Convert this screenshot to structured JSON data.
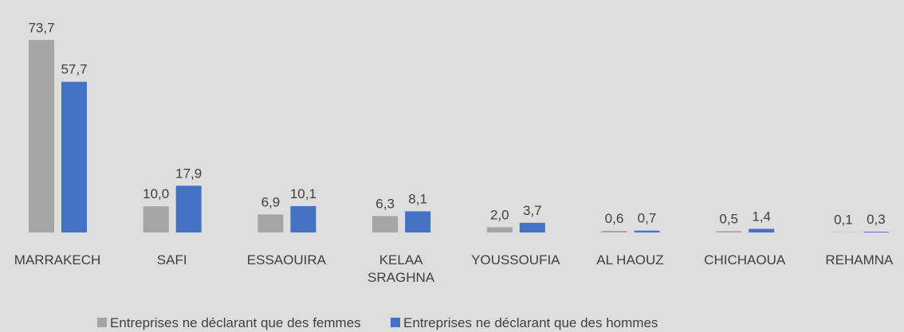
{
  "chart_data": {
    "type": "bar",
    "categories": [
      "MARRAKECH",
      "SAFI",
      "ESSAOUIRA",
      "KELAA SRAGHNA",
      "YOUSSOUFIA",
      "AL HAOUZ",
      "CHICHAOUA",
      "REHAMNA"
    ],
    "series": [
      {
        "name": "Entreprises ne déclarant que des femmes",
        "color": "#a5a5a5",
        "values": [
          73.7,
          10.0,
          6.9,
          6.3,
          2.0,
          0.6,
          0.5,
          0.1
        ],
        "value_labels": [
          "73,7",
          "10,0",
          "6,9",
          "6,3",
          "2,0",
          "0,6",
          "0,5",
          "0,1"
        ]
      },
      {
        "name": "Entreprises ne déclarant que des hommes",
        "color": "#4472c4",
        "values": [
          57.7,
          17.9,
          10.1,
          8.1,
          3.7,
          0.7,
          1.4,
          0.3
        ],
        "value_labels": [
          "57,7",
          "17,9",
          "10,1",
          "8,1",
          "3,7",
          "0,7",
          "1,4",
          "0,3"
        ]
      }
    ],
    "legend": "bottom"
  }
}
